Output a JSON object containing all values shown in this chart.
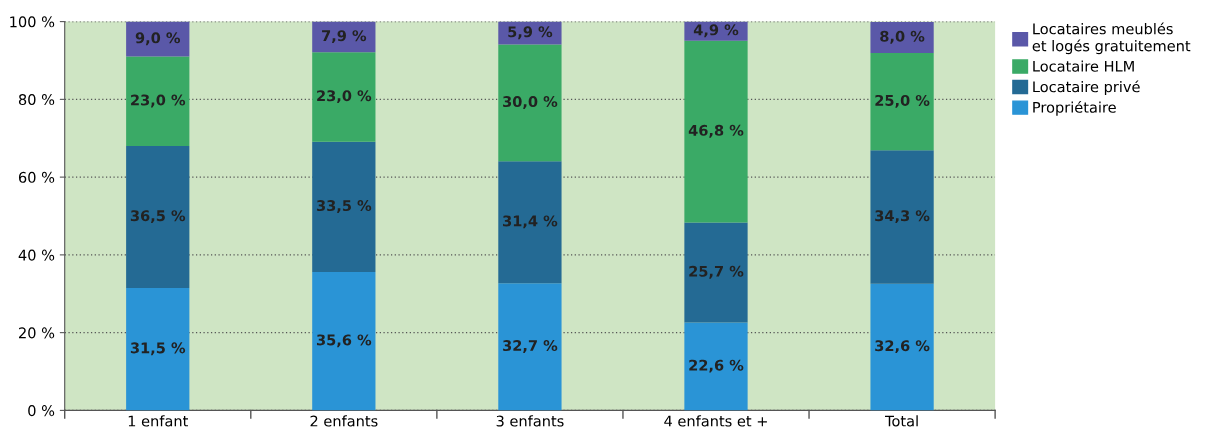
{
  "chart_data": {
    "type": "bar",
    "stacked": true,
    "categories": [
      "1 enfant",
      "2 enfants",
      "3 enfants",
      "4 enfants et +",
      "Total"
    ],
    "series": [
      {
        "name": "Propriétaire",
        "color": "#2a94d6",
        "values": [
          31.5,
          35.6,
          32.7,
          22.6,
          32.6
        ],
        "value_labels": [
          "31,5 %",
          "35,6 %",
          "32,7 %",
          "22,6 %",
          "32,6 %"
        ]
      },
      {
        "name": "Locataire privé",
        "color": "#246a94",
        "values": [
          36.5,
          33.5,
          31.4,
          25.7,
          34.3
        ],
        "value_labels": [
          "36,5 %",
          "33,5 %",
          "31,4 %",
          "25,7 %",
          "34,3 %"
        ]
      },
      {
        "name": "Locataire HLM",
        "color": "#3aaa66",
        "values": [
          23.0,
          23.0,
          30.0,
          46.8,
          25.0
        ],
        "value_labels": [
          "23,0 %",
          "23,0 %",
          "30,0 %",
          "46,8 %",
          "25,0 %"
        ]
      },
      {
        "name": "Locataires meublés\net logés gratuitement",
        "color": "#5a58a8",
        "values": [
          9.0,
          7.9,
          5.9,
          4.9,
          8.0
        ],
        "value_labels": [
          "9,0 %",
          "7,9 %",
          "5,9 %",
          "4,9 %",
          "8,0 %"
        ]
      }
    ],
    "ylim": [
      0,
      100
    ],
    "yticks": [
      {
        "value": 0,
        "label": "0 %"
      },
      {
        "value": 20,
        "label": "20 %"
      },
      {
        "value": 40,
        "label": "40 %"
      },
      {
        "value": 60,
        "label": "60 %"
      },
      {
        "value": 80,
        "label": "80 %"
      },
      {
        "value": 100,
        "label": "100 %"
      }
    ],
    "grid": "y",
    "legend": "top right"
  }
}
